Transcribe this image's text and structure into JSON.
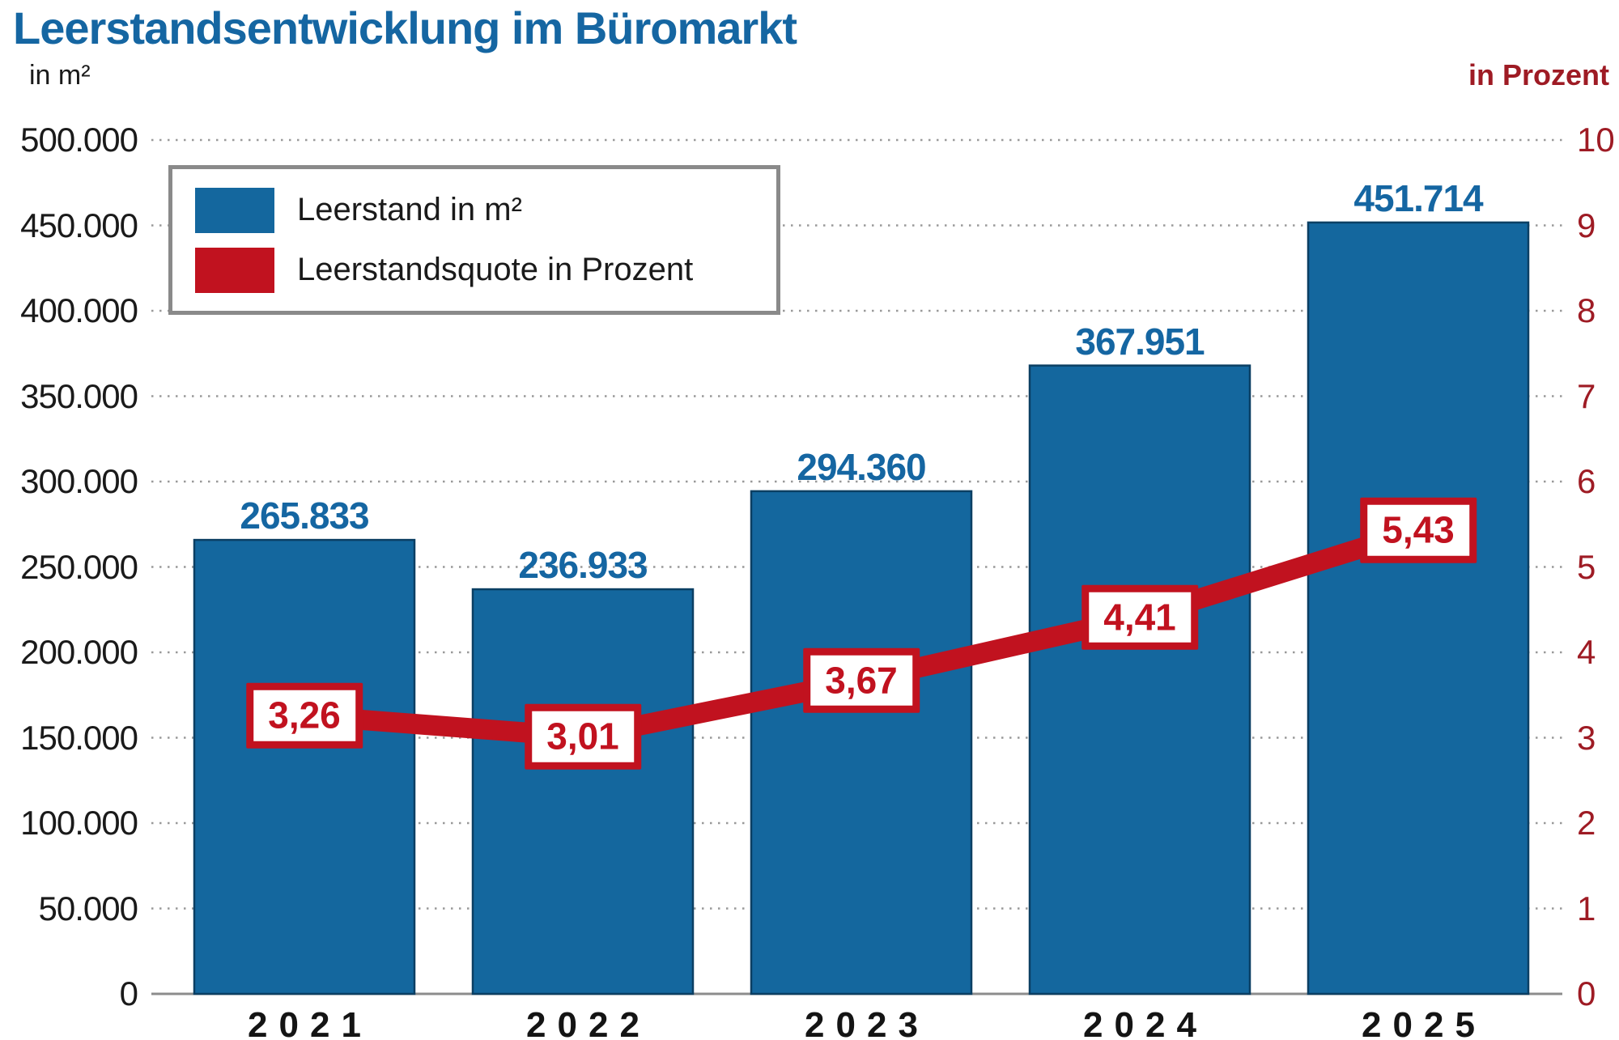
{
  "title": "Leerstandsentwicklung im Büromarkt",
  "axes": {
    "left_unit": "in m²",
    "right_unit": "in Prozent",
    "left_ticks": [
      "500.000",
      "450.000",
      "400.000",
      "350.000",
      "300.000",
      "250.000",
      "200.000",
      "150.000",
      "100.000",
      "50.000",
      "0"
    ],
    "right_ticks": [
      "10",
      "9",
      "8",
      "7",
      "6",
      "5",
      "4",
      "3",
      "2",
      "1",
      "0"
    ]
  },
  "legend": {
    "items": [
      {
        "label": "Leerstand in m²",
        "color": "#14679E"
      },
      {
        "label": "Leerstandsquote in Prozent",
        "color": "#C1121F"
      }
    ]
  },
  "chart_data": {
    "type": "bar+line",
    "title": "Leerstandsentwicklung im Büromarkt",
    "categories": [
      "2021",
      "2022",
      "2023",
      "2024",
      "2025"
    ],
    "series": [
      {
        "name": "Leerstand in m²",
        "type": "bar",
        "axis": "left",
        "color": "#14679E",
        "values": [
          265833,
          236933,
          294360,
          367951,
          451714
        ],
        "labels": [
          "265.833",
          "236.933",
          "294.360",
          "367.951",
          "451.714"
        ]
      },
      {
        "name": "Leerstandsquote in Prozent",
        "type": "line",
        "axis": "right",
        "color": "#C1121F",
        "values": [
          3.26,
          3.01,
          3.67,
          4.41,
          5.43
        ],
        "labels": [
          "3,26",
          "3,01",
          "3,67",
          "4,41",
          "5,43"
        ]
      }
    ],
    "left_axis": {
      "label": "in m²",
      "min": 0,
      "max": 500000,
      "step": 50000
    },
    "right_axis": {
      "label": "in Prozent",
      "min": 0,
      "max": 10,
      "step": 1
    },
    "grid": "horizontal dotted",
    "legend_position": "top-left inside plot"
  },
  "colors": {
    "bar_fill": "#14679E",
    "bar_edge": "#0B3F63",
    "line_red": "#C1121F",
    "axis_red_text": "#9E1B24",
    "title_blue": "#1566A2",
    "grid_gray": "#999999",
    "baseline_gray": "#8c8c8c",
    "legend_border": "#8a8a8a",
    "black_text": "#1a1a1a"
  }
}
